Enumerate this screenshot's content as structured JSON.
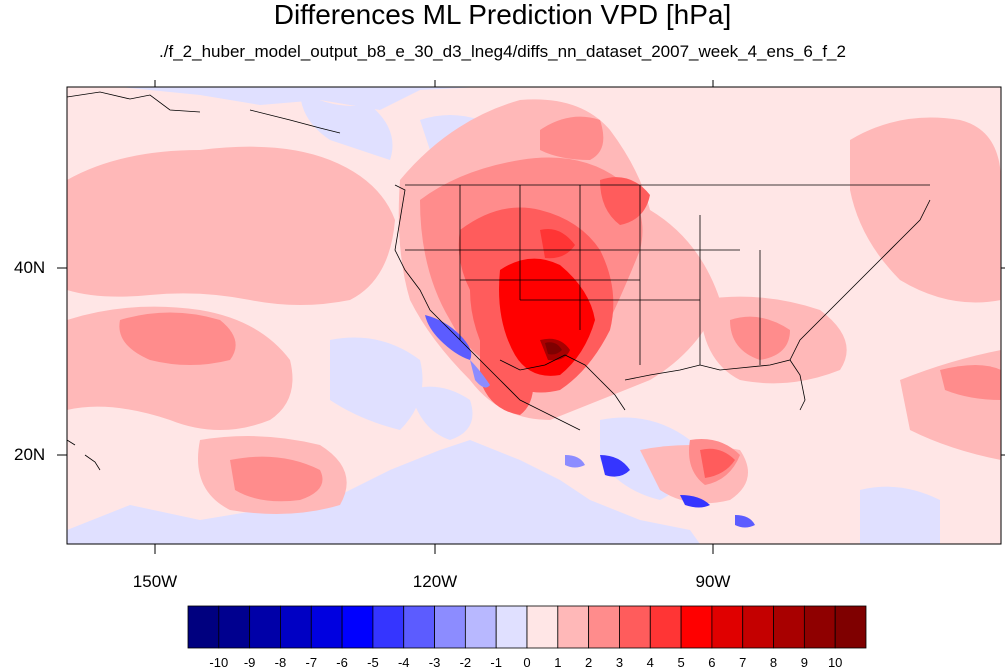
{
  "title": "Differences ML Prediction VPD [hPa]",
  "subtitle": "./f_2_huber_model_output_b8_e_30_d3_lneg4/diffs_nn_dataset_2007_week_4_ens_6_f_2",
  "y_ticks": [
    "40N",
    "20N"
  ],
  "x_ticks": [
    "150W",
    "120W",
    "90W"
  ],
  "colorbar": {
    "labels": [
      "-10",
      "-9",
      "-8",
      "-7",
      "-6",
      "-5",
      "-4",
      "-3",
      "-2",
      "-1",
      "0",
      "1",
      "2",
      "3",
      "4",
      "5",
      "6",
      "7",
      "8",
      "9",
      "10"
    ],
    "colors": [
      "#00007f",
      "#00008f",
      "#0000a8",
      "#0000c4",
      "#0000e0",
      "#0000ff",
      "#3535ff",
      "#5c5cff",
      "#8c8cff",
      "#b8b8ff",
      "#e0e0ff",
      "#ffe6e6",
      "#ffb8b8",
      "#ff8c8c",
      "#ff5c5c",
      "#ff3535",
      "#ff0000",
      "#e00000",
      "#c40000",
      "#a80000",
      "#8f0000",
      "#7f0000"
    ]
  },
  "colors": {
    "background_positive": "#ffe6e6",
    "background_negative": "#e0e0ff",
    "outline": "#000000"
  }
}
